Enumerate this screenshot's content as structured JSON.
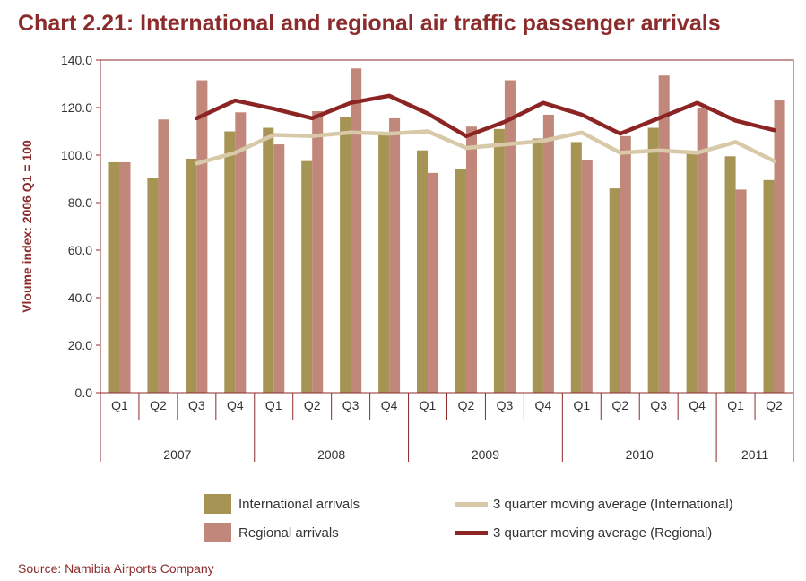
{
  "title": "Chart 2.21: International and regional air traffic passenger arrivals",
  "source": "Source: Namibia Airports Company",
  "colors": {
    "international": "#a69454",
    "regional": "#c0877a",
    "ma_international": "#d8c9a8",
    "ma_regional": "#8c2424",
    "accent": "#8c2b2b"
  },
  "legend": [
    {
      "key": "international",
      "label": "International arrivals",
      "kind": "box"
    },
    {
      "key": "regional",
      "label": "Regional arrivals",
      "kind": "box"
    },
    {
      "key": "ma_international",
      "label": "3 quarter moving average (International)",
      "kind": "line"
    },
    {
      "key": "ma_regional",
      "label": "3 quarter moving average (Regional)",
      "kind": "line"
    }
  ],
  "chart_data": {
    "type": "bar",
    "ylabel": "Vloume index: 2006 Q1 = 100",
    "ylim": [
      0,
      140
    ],
    "yticks": [
      "0.0",
      "20.0",
      "40.0",
      "60.0",
      "80.0",
      "100.0",
      "120.0",
      "140.0"
    ],
    "categories": [
      "Q1",
      "Q2",
      "Q3",
      "Q4",
      "Q1",
      "Q2",
      "Q3",
      "Q4",
      "Q1",
      "Q2",
      "Q3",
      "Q4",
      "Q1",
      "Q2",
      "Q3",
      "Q4",
      "Q1",
      "Q2"
    ],
    "years": [
      {
        "label": "2007",
        "count": 4
      },
      {
        "label": "2008",
        "count": 4
      },
      {
        "label": "2009",
        "count": 4
      },
      {
        "label": "2010",
        "count": 4
      },
      {
        "label": "2011",
        "count": 2
      }
    ],
    "legend_position": "bottom",
    "series": [
      {
        "name": "International arrivals",
        "type": "bar",
        "color_key": "international",
        "values": [
          97,
          90.5,
          98.5,
          110,
          111.5,
          97.5,
          116,
          108.5,
          102,
          94,
          111,
          107,
          105.5,
          86,
          111.5,
          101,
          99.5,
          89.5
        ]
      },
      {
        "name": "Regional arrivals",
        "type": "bar",
        "color_key": "regional",
        "values": [
          97,
          115,
          131.5,
          118,
          104.5,
          118.5,
          136.5,
          115.5,
          92.5,
          112,
          131.5,
          117,
          98,
          108,
          133.5,
          120,
          85.5,
          123
        ]
      },
      {
        "name": "3 quarter moving average (International)",
        "type": "line",
        "color_key": "ma_international",
        "values": [
          null,
          null,
          96.5,
          101,
          108.5,
          108,
          109.5,
          109,
          110,
          103,
          104.5,
          106,
          109.5,
          101,
          102,
          101,
          105.5,
          97.5
        ]
      },
      {
        "name": "3 quarter moving average (Regional)",
        "type": "line",
        "color_key": "ma_regional",
        "values": [
          null,
          null,
          115.5,
          123,
          119.5,
          115.5,
          122,
          125,
          117.5,
          108,
          114,
          122,
          117,
          109,
          115.5,
          122,
          114.5,
          110.5
        ]
      }
    ]
  }
}
